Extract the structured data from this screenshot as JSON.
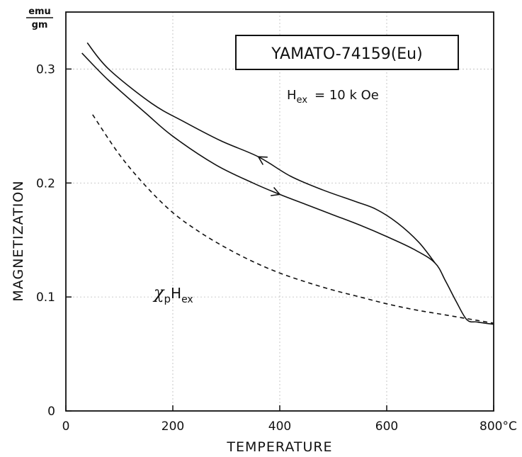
{
  "chart_data": {
    "type": "line",
    "title": "YAMATO-74159(Eu)",
    "field": {
      "prefix": "H",
      "subscript": "ex",
      "value": "= 10 k Oe"
    },
    "xlabel": "TEMPERATURE",
    "ylabel": "MAGNETIZATION",
    "yunits": {
      "numerator": "emu",
      "denominator": "gm"
    },
    "xlim": [
      0,
      800
    ],
    "ylim": [
      0,
      0.35
    ],
    "xticks": [
      {
        "value": 0,
        "label": "0"
      },
      {
        "value": 200,
        "label": "200"
      },
      {
        "value": 400,
        "label": "400"
      },
      {
        "value": 600,
        "label": "600"
      },
      {
        "value": 800,
        "label": "800°C"
      }
    ],
    "yticks": [
      {
        "value": 0,
        "label": "0"
      },
      {
        "value": 0.1,
        "label": "0.1"
      },
      {
        "value": 0.2,
        "label": "0.2"
      },
      {
        "value": 0.3,
        "label": "0.3"
      }
    ],
    "grid": true,
    "series": [
      {
        "direction": "heating",
        "style": "solid",
        "x": [
          30,
          80,
          150,
          200,
          280,
          350,
          400,
          450,
          500,
          550,
          600,
          650,
          690,
          710,
          730,
          750,
          770,
          800
        ],
        "y": [
          0.314,
          0.29,
          0.261,
          0.241,
          0.216,
          0.2,
          0.19,
          0.181,
          0.172,
          0.163,
          0.153,
          0.142,
          0.13,
          0.114,
          0.096,
          0.08,
          0.078,
          0.076
        ],
        "arrow_at_x": 400
      },
      {
        "direction": "cooling",
        "style": "solid",
        "x": [
          40,
          80,
          160,
          220,
          290,
          360,
          420,
          480,
          540,
          580,
          620,
          660,
          690
        ],
        "y": [
          0.323,
          0.3,
          0.27,
          0.254,
          0.237,
          0.223,
          0.206,
          0.194,
          0.184,
          0.177,
          0.165,
          0.148,
          0.13
        ],
        "arrow_at_x": 360
      },
      {
        "name": "χpHex",
        "style": "dashed",
        "x": [
          50,
          100,
          150,
          200,
          250,
          300,
          350,
          400,
          450,
          500,
          550,
          600,
          650,
          700,
          750,
          800
        ],
        "y": [
          0.26,
          0.225,
          0.197,
          0.174,
          0.157,
          0.143,
          0.131,
          0.121,
          0.113,
          0.106,
          0.1,
          0.094,
          0.089,
          0.085,
          0.081,
          0.077
        ]
      }
    ],
    "annotation": {
      "symbol": "χ",
      "sub": "p",
      "main": "H",
      "main_sub": "ex",
      "x": 290,
      "y": 0.115
    }
  }
}
